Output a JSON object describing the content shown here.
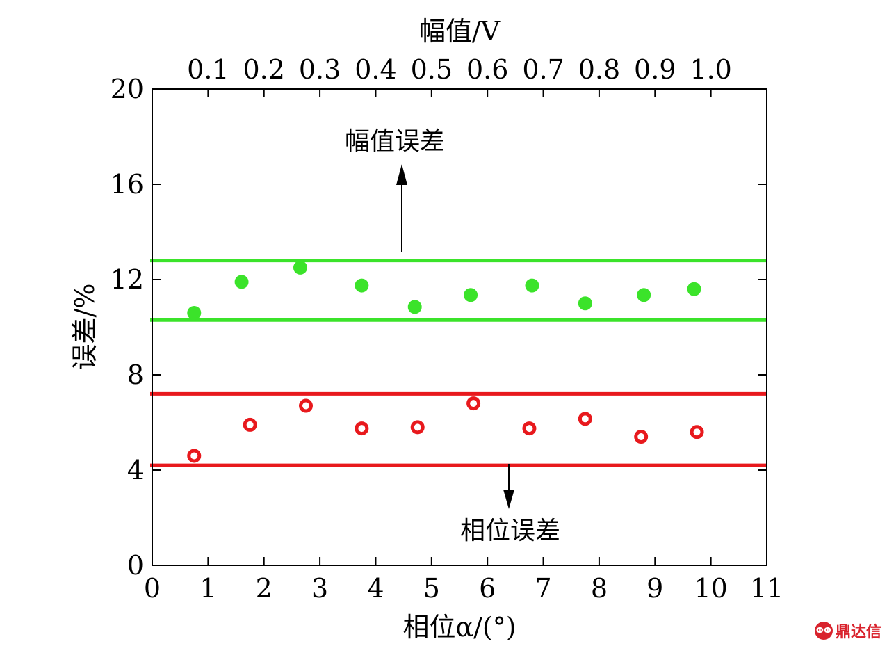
{
  "chart_data": {
    "type": "scatter",
    "xlabel": "相位α/(°)",
    "ylabel": "误差/%",
    "top_xlabel": "幅值/V",
    "xlim": [
      0,
      11
    ],
    "ylim": [
      0,
      20
    ],
    "x_ticks": [
      "0",
      "1",
      "2",
      "3",
      "4",
      "5",
      "6",
      "7",
      "8",
      "9",
      "10",
      "11"
    ],
    "y_ticks": [
      "0",
      "4",
      "8",
      "12",
      "16",
      "20"
    ],
    "top_ticks": [
      {
        "label": "0.1",
        "x": 1.0
      },
      {
        "label": "0.2",
        "x": 2.0
      },
      {
        "label": "0.3",
        "x": 3.0
      },
      {
        "label": "0.4",
        "x": 4.0
      },
      {
        "label": "0.5",
        "x": 5.0
      },
      {
        "label": "0.6",
        "x": 6.0
      },
      {
        "label": "0.7",
        "x": 7.0
      },
      {
        "label": "0.8",
        "x": 8.0
      },
      {
        "label": "0.9",
        "x": 9.0
      },
      {
        "label": "1.0",
        "x": 10.0
      }
    ],
    "series": [
      {
        "color": "#3be32a",
        "marker": "filled-circle",
        "points": [
          [
            0.75,
            10.6
          ],
          [
            1.6,
            11.9
          ],
          [
            2.65,
            12.5
          ],
          [
            3.75,
            11.75
          ],
          [
            4.7,
            10.85
          ],
          [
            5.7,
            11.35
          ],
          [
            6.8,
            11.75
          ],
          [
            7.75,
            11.0
          ],
          [
            8.8,
            11.35
          ],
          [
            9.7,
            11.6
          ]
        ]
      },
      {
        "color": "#e8191d",
        "marker": "open-circle",
        "points": [
          [
            0.75,
            4.6
          ],
          [
            1.75,
            5.9
          ],
          [
            2.75,
            6.7
          ],
          [
            3.75,
            5.75
          ],
          [
            4.75,
            5.8
          ],
          [
            5.75,
            6.8
          ],
          [
            6.75,
            5.75
          ],
          [
            7.75,
            6.15
          ],
          [
            8.75,
            5.4
          ],
          [
            9.75,
            5.6
          ]
        ]
      }
    ],
    "bands": [
      {
        "color": "#3be32a",
        "y": 12.8
      },
      {
        "color": "#3be32a",
        "y": 10.3
      },
      {
        "color": "#e8191d",
        "y": 7.2
      },
      {
        "color": "#e8191d",
        "y": 4.2
      }
    ],
    "annotations": [
      {
        "text": "幅值误差",
        "direction": "up"
      },
      {
        "text": "相位误差",
        "direction": "down"
      }
    ]
  },
  "watermark": {
    "logo": "ΦΦ",
    "text": "鼎达信"
  }
}
